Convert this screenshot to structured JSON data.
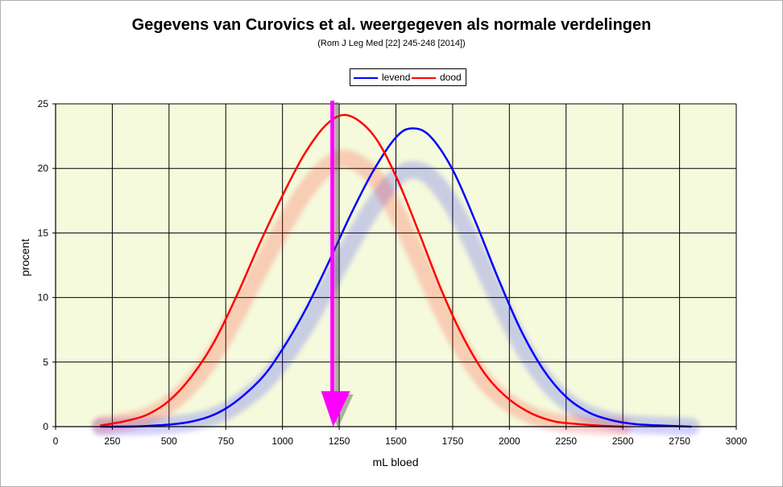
{
  "chart_data": {
    "type": "line",
    "title": "Gegevens van Curovics et al. weergegeven als normale verdelingen",
    "subtitle": "(Rom J Leg Med [22] 245-248 [2014])",
    "xlabel": "mL bloed",
    "ylabel": "procent",
    "xlim": [
      0,
      3000
    ],
    "ylim": [
      0,
      25
    ],
    "xticks": [
      "0",
      "250",
      "500",
      "750",
      "1000",
      "1250",
      "1500",
      "1750",
      "2000",
      "2250",
      "2500",
      "2750",
      "3000"
    ],
    "yticks": [
      "0",
      "5",
      "10",
      "15",
      "20",
      "25"
    ],
    "grid": true,
    "legend_position": "top-center",
    "plot_background": "#f5fadc",
    "series": [
      {
        "name": "levend",
        "color": "#0000ff",
        "x": [
          200,
          400,
          600,
          750,
          900,
          1000,
          1100,
          1200,
          1300,
          1400,
          1500,
          1570,
          1650,
          1750,
          1850,
          1950,
          2050,
          2150,
          2250,
          2350,
          2450,
          2550,
          2650,
          2800
        ],
        "y": [
          0,
          0.05,
          0.4,
          1.4,
          3.6,
          6.0,
          9.0,
          12.6,
          16.4,
          19.8,
          22.4,
          23.1,
          22.5,
          19.9,
          15.9,
          11.5,
          7.5,
          4.4,
          2.3,
          1.1,
          0.5,
          0.2,
          0.1,
          0
        ]
      },
      {
        "name": "dood",
        "color": "#ff0000",
        "x": [
          200,
          300,
          400,
          500,
          600,
          700,
          800,
          900,
          1000,
          1100,
          1200,
          1290,
          1400,
          1500,
          1600,
          1700,
          1800,
          1900,
          2000,
          2100,
          2200,
          2300,
          2400,
          2500
        ],
        "y": [
          0.1,
          0.4,
          0.9,
          2.0,
          3.9,
          6.6,
          10.2,
          14.2,
          17.9,
          21.2,
          23.5,
          24.1,
          22.6,
          19.4,
          15.1,
          10.6,
          6.8,
          3.9,
          2.1,
          1.0,
          0.4,
          0.2,
          0.07,
          0
        ]
      }
    ],
    "annotations": [
      {
        "type": "arrow",
        "color": "#ff00ff",
        "x": 1220,
        "y_from": 25,
        "y_to": 0
      }
    ]
  }
}
